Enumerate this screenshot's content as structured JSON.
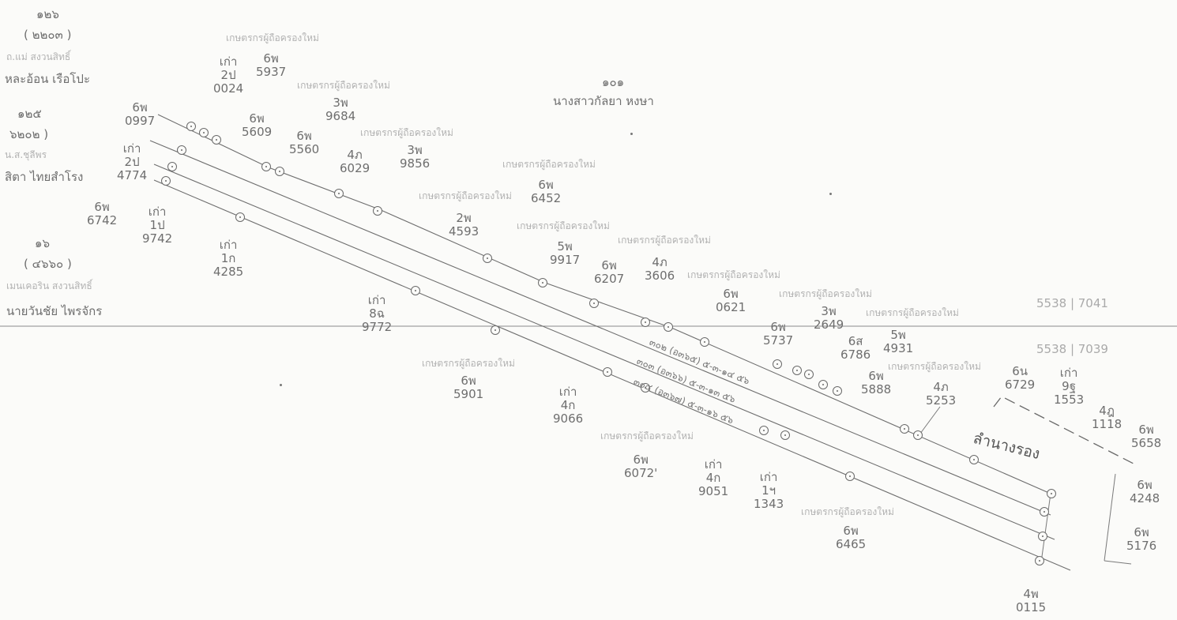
{
  "owners": {
    "a": {
      "id": "๑๒๖",
      "code": "( ๒๒๐๓ )",
      "desc": "ถ.แม่ สงวนสิทธิ์",
      "name": "หละอ้อน เรือโปะ"
    },
    "b": {
      "id": "๑๒๕",
      "code": "๖๒๐๒ )",
      "desc": "น.ส.ชุลีพร",
      "name": "สิตา ไทยสำโรง"
    },
    "c": {
      "id": "๑๖",
      "code": "( ๔๖๖๐ )",
      "desc": "เมนเคอริน สงวนสิทธิ์",
      "name": "นายวันชัย ไพรจักร"
    },
    "d": {
      "id": "๑๐๑",
      "name": "นางสาวกัลยา หงษา"
    }
  },
  "parcels": {
    "p1": {
      "a": "6พ",
      "b": "0997"
    },
    "p2": {
      "a": "เก่า",
      "b": "2ป",
      "c": "4774"
    },
    "p3": {
      "a": "6พ",
      "b": "6742"
    },
    "p4": {
      "a": "เก่า",
      "b": "1ป",
      "c": "9742"
    },
    "p5": {
      "a": "เก่า",
      "b": "2ป",
      "c": "0024"
    },
    "p6": {
      "a": "6พ",
      "b": "5937"
    },
    "p7": {
      "a": "6พ",
      "b": "5609"
    },
    "p8": {
      "a": "6พ",
      "b": "5560"
    },
    "p9": {
      "a": "3พ",
      "b": "9684"
    },
    "p10": {
      "a": "4ภ",
      "b": "6029"
    },
    "p11": {
      "a": "3พ",
      "b": "9856"
    },
    "p12": {
      "a": "6พ",
      "b": "6452"
    },
    "p13": {
      "a": "2พ",
      "b": "4593"
    },
    "p14": {
      "a": "5พ",
      "b": "9917"
    },
    "p15": {
      "a": "6พ",
      "b": "6207"
    },
    "p16": {
      "a": "4ภ",
      "b": "3606"
    },
    "p17": {
      "a": "6พ",
      "b": "0621"
    },
    "p18": {
      "a": "6พ",
      "b": "5737"
    },
    "p19": {
      "a": "3พ",
      "b": "2649"
    },
    "p20": {
      "a": "6ส",
      "b": "6786"
    },
    "p21": {
      "a": "5พ",
      "b": "4931"
    },
    "p22": {
      "a": "6พ",
      "b": "5888"
    },
    "p23": {
      "a": "4ภ",
      "b": "5253"
    },
    "p24": {
      "a": "เก่า",
      "b": "1ก",
      "c": "4285"
    },
    "p25": {
      "a": "เก่า",
      "b": "8ฉ",
      "c": "9772"
    },
    "p26": {
      "a": "6พ",
      "b": "5901"
    },
    "p27": {
      "a": "เก่า",
      "b": "4ก",
      "c": "9066"
    },
    "p28": {
      "a": "6พ",
      "b": "6072'"
    },
    "p29": {
      "a": "เก่า",
      "b": "4ก",
      "c": "9051"
    },
    "p30": {
      "a": "เก่า",
      "b": "1ฯ",
      "c": "1343"
    },
    "p31": {
      "a": "6พ",
      "b": "6465"
    },
    "p32": {
      "a": "6น",
      "b": "6729"
    },
    "p33": {
      "a": "เก่า",
      "b": "9ฐ",
      "c": "1553"
    },
    "p34": {
      "a": "4ฎ",
      "b": "1118"
    },
    "p35": {
      "a": "6พ",
      "b": "5658"
    },
    "p36": {
      "a": "6พ",
      "b": "4248"
    },
    "p37": {
      "a": "6พ",
      "b": "5176"
    },
    "p38": {
      "a": "4พ",
      "b": "0115"
    }
  },
  "faint_note": "เกษตรกรผู้ถือครองใหม่",
  "right_codes": {
    "top": "5538 | 7041",
    "bottom": "5538 | 7039"
  },
  "survey_lines": {
    "l1": "๓๐๒ (อ๓๖๕) ๕-๓-๑๔ ๕๖",
    "l2": "๓๐๓ (อ๓๖๖) ๕-๓-๑๓ ๕๖",
    "l3": "๓๐๔ (อ๓๖๗) ๕-๓-๑๖ ๕๖"
  },
  "waterway_name": "ลำนางรอง"
}
